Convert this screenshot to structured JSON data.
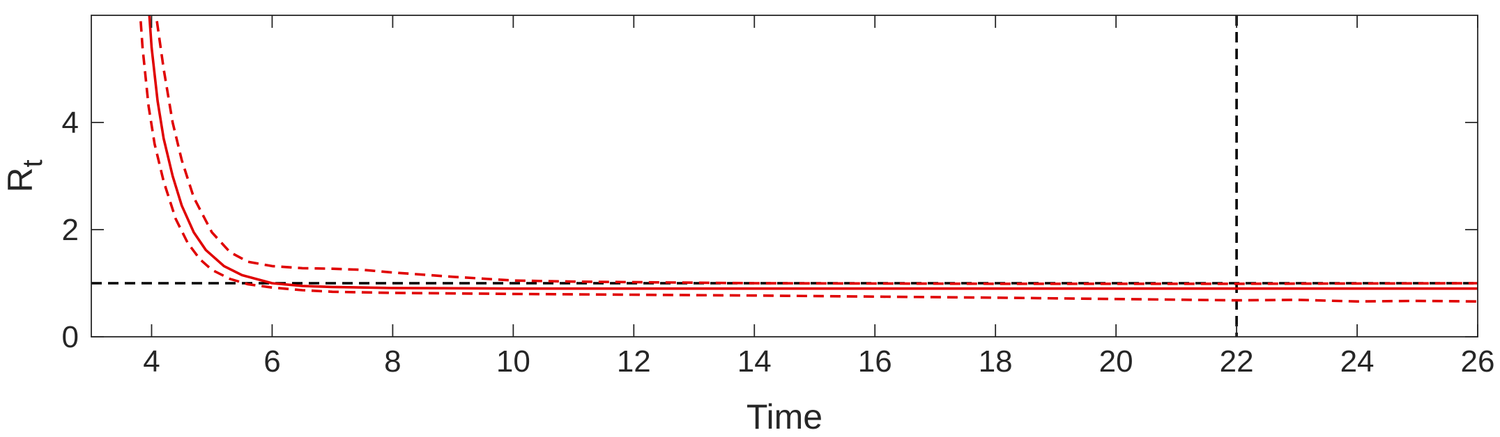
{
  "chart_data": {
    "type": "line",
    "xlabel": "Time",
    "ylabel_main": "R",
    "ylabel_sub": "t",
    "xlim": [
      3,
      26
    ],
    "ylim": [
      0,
      6
    ],
    "xticks": [
      4,
      6,
      8,
      10,
      12,
      14,
      16,
      18,
      20,
      22,
      24,
      26
    ],
    "yticks": [
      0,
      2,
      4
    ],
    "grid": false,
    "reference_lines": [
      {
        "orientation": "horizontal",
        "value": 1,
        "color": "#000000",
        "style": "dashed"
      },
      {
        "orientation": "vertical",
        "value": 22,
        "color": "#000000",
        "style": "dashed"
      }
    ],
    "series": [
      {
        "style": "solid",
        "color": "#e00000",
        "x": [
          3.95,
          4.0,
          4.1,
          4.2,
          4.35,
          4.5,
          4.7,
          4.9,
          5.2,
          5.5,
          6.0,
          6.5,
          7.0,
          8.0,
          10.0,
          14.0,
          18.0,
          22.0,
          26.0
        ],
        "y": [
          6.2,
          5.4,
          4.4,
          3.7,
          3.0,
          2.45,
          1.95,
          1.62,
          1.32,
          1.15,
          1.0,
          0.95,
          0.93,
          0.91,
          0.9,
          0.9,
          0.9,
          0.9,
          0.9
        ]
      },
      {
        "style": "dashed",
        "color": "#e00000",
        "x": [
          4.05,
          4.1,
          4.2,
          4.35,
          4.5,
          4.7,
          5.0,
          5.3,
          5.6,
          6.0,
          6.5,
          7.0,
          7.5,
          8.0,
          9.0,
          10.0,
          11.0,
          14.0,
          18.0,
          22.0,
          26.0
        ],
        "y": [
          6.2,
          5.8,
          5.0,
          4.0,
          3.3,
          2.6,
          1.95,
          1.58,
          1.4,
          1.32,
          1.28,
          1.27,
          1.25,
          1.2,
          1.12,
          1.05,
          1.03,
          1.0,
          0.99,
          0.99,
          1.0
        ]
      },
      {
        "style": "dashed",
        "color": "#e00000",
        "x": [
          3.8,
          3.85,
          3.95,
          4.05,
          4.2,
          4.4,
          4.6,
          4.8,
          5.0,
          5.3,
          5.6,
          6.0,
          6.5,
          7.0,
          8.0,
          10.0,
          14.0,
          18.0,
          22.0,
          23.0,
          24.0,
          25.0,
          26.0
        ],
        "y": [
          6.2,
          5.4,
          4.3,
          3.6,
          2.9,
          2.2,
          1.75,
          1.45,
          1.25,
          1.08,
          0.98,
          0.92,
          0.87,
          0.84,
          0.82,
          0.8,
          0.77,
          0.73,
          0.68,
          0.69,
          0.66,
          0.67,
          0.66
        ]
      }
    ]
  }
}
